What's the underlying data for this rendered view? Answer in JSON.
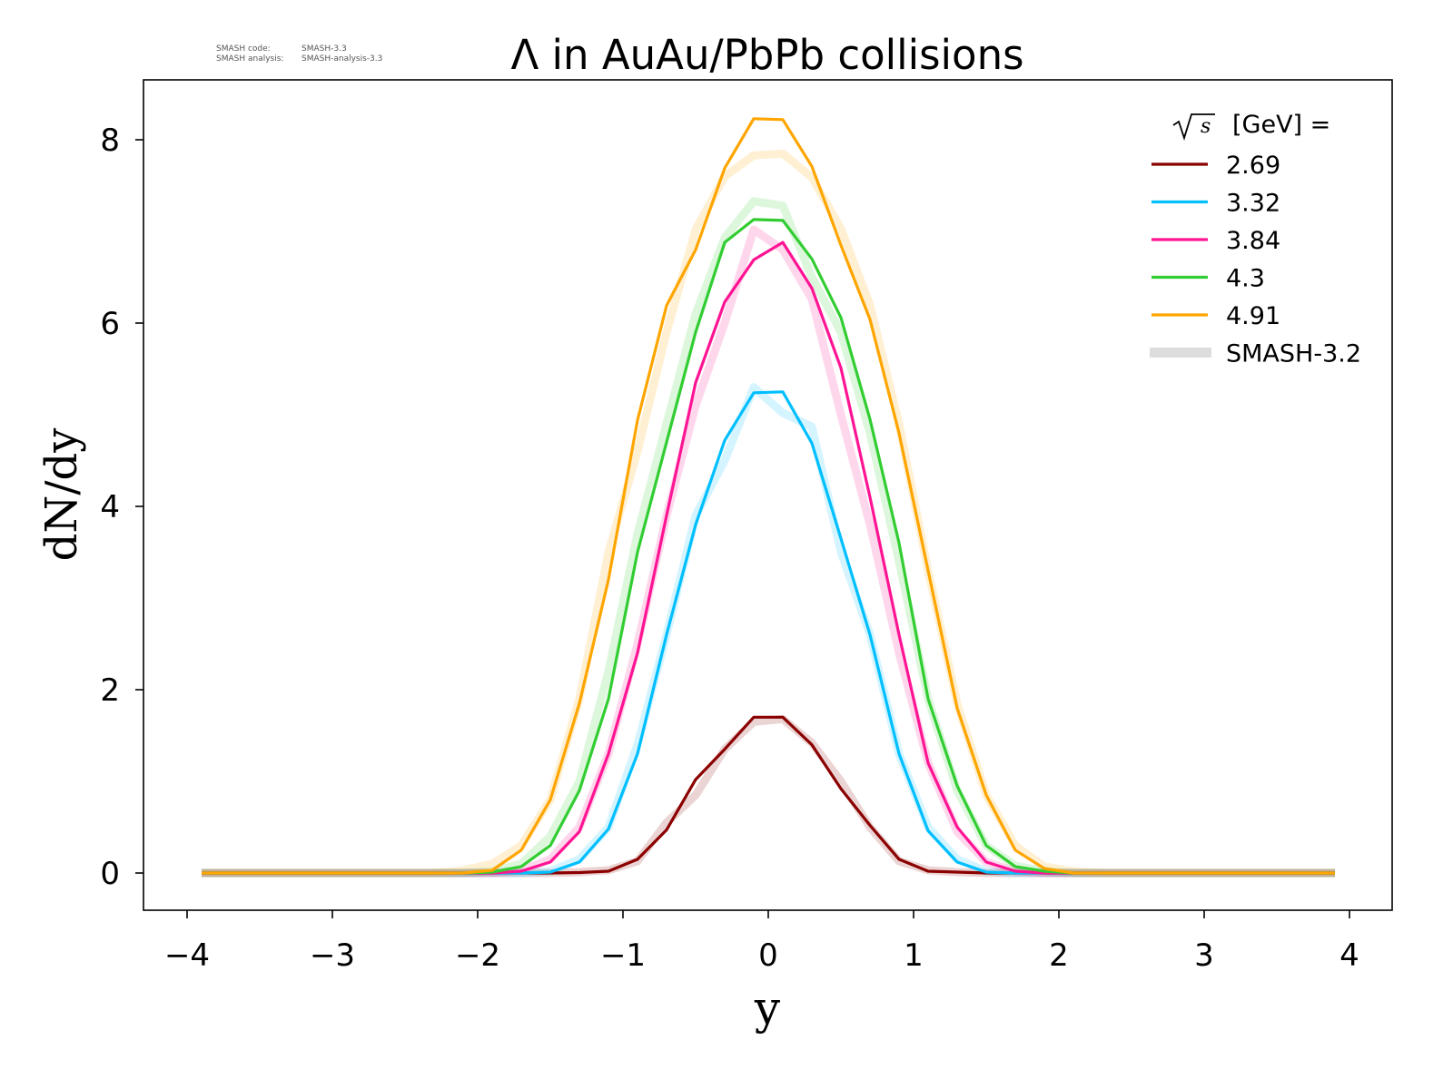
{
  "meta": {
    "code_label": "SMASH code:",
    "code_value": "SMASH-3.3",
    "analysis_label": "SMASH analysis:",
    "analysis_value": "SMASH-analysis-3.3"
  },
  "chart_data": {
    "type": "line",
    "title": "Λ in AuAu/PbPb collisions",
    "xlabel": "y",
    "ylabel": "dN/dy",
    "xlim": [
      -4.3,
      4.3
    ],
    "ylim": [
      -0.4,
      8.65
    ],
    "xticks": [
      -4,
      -3,
      -2,
      -1,
      0,
      1,
      2,
      3,
      4
    ],
    "xtick_labels": [
      "−4",
      "−3",
      "−2",
      "−1",
      "0",
      "1",
      "2",
      "3",
      "4"
    ],
    "yticks": [
      0,
      2,
      4,
      6,
      8
    ],
    "ytick_labels": [
      "0",
      "2",
      "4",
      "6",
      "8"
    ],
    "grid": false,
    "legend": {
      "placement": "top-right",
      "title_root": "s",
      "title_text": "[GeV] =",
      "reference_label": "SMASH-3.2",
      "reference_color": "#dddddd"
    },
    "x": [
      -3.9,
      -3.7,
      -3.5,
      -3.3,
      -3.1,
      -2.9,
      -2.7,
      -2.5,
      -2.3,
      -2.1,
      -1.9,
      -1.7,
      -1.5,
      -1.3,
      -1.1,
      -0.9,
      -0.7,
      -0.5,
      -0.3,
      -0.1,
      0.1,
      0.3,
      0.5,
      0.7,
      0.9,
      1.1,
      1.3,
      1.5,
      1.7,
      1.9,
      2.1,
      2.3,
      2.5,
      2.7,
      2.9,
      3.1,
      3.3,
      3.5,
      3.7,
      3.9
    ],
    "series": [
      {
        "name": "2.69",
        "color": "#8b0000",
        "values": [
          0,
          0,
          0,
          0,
          0,
          0,
          0,
          0,
          0,
          0,
          0,
          0,
          0,
          0.005,
          0.02,
          0.15,
          0.47,
          1.02,
          1.35,
          1.7,
          1.7,
          1.4,
          0.92,
          0.52,
          0.15,
          0.02,
          0.01,
          0,
          0,
          0,
          0,
          0,
          0,
          0,
          0,
          0,
          0,
          0,
          0,
          0
        ],
        "reference": [
          0,
          0,
          0,
          0,
          0,
          0,
          0,
          0,
          0,
          0,
          0,
          0,
          0,
          0.01,
          0.03,
          0.13,
          0.55,
          0.85,
          1.35,
          1.65,
          1.68,
          1.42,
          1.0,
          0.5,
          0.13,
          0.03,
          0.01,
          0,
          0,
          0,
          0,
          0,
          0,
          0,
          0,
          0,
          0,
          0,
          0,
          0
        ]
      },
      {
        "name": "3.32",
        "color": "#00bfff",
        "values": [
          0,
          0,
          0,
          0,
          0,
          0,
          0,
          0,
          0,
          0,
          0,
          0,
          0.01,
          0.12,
          0.48,
          1.3,
          2.6,
          3.8,
          4.72,
          5.24,
          5.25,
          4.69,
          3.65,
          2.6,
          1.3,
          0.46,
          0.12,
          0.01,
          0,
          0,
          0,
          0,
          0,
          0,
          0,
          0,
          0,
          0,
          0,
          0
        ],
        "reference": [
          0,
          0,
          0,
          0,
          0,
          0,
          0,
          0,
          0,
          0,
          0,
          0,
          0.02,
          0.15,
          0.5,
          1.4,
          2.6,
          3.9,
          4.5,
          5.3,
          5.02,
          4.87,
          3.5,
          2.6,
          1.3,
          0.5,
          0.15,
          0.02,
          0,
          0,
          0,
          0,
          0,
          0,
          0,
          0,
          0,
          0,
          0,
          0
        ]
      },
      {
        "name": "3.84",
        "color": "#ff1493",
        "values": [
          0,
          0,
          0,
          0,
          0,
          0,
          0,
          0,
          0,
          0,
          0,
          0.02,
          0.12,
          0.45,
          1.3,
          2.4,
          3.9,
          5.35,
          6.23,
          6.69,
          6.88,
          6.38,
          5.51,
          4.1,
          2.6,
          1.2,
          0.5,
          0.12,
          0.02,
          0,
          0,
          0,
          0,
          0,
          0,
          0,
          0,
          0,
          0,
          0
        ],
        "reference": [
          0,
          0,
          0,
          0,
          0,
          0,
          0,
          0,
          0,
          0,
          0,
          0.03,
          0.15,
          0.5,
          1.3,
          2.5,
          3.9,
          5.1,
          6.0,
          7.02,
          6.8,
          6.26,
          5.0,
          3.8,
          2.4,
          1.2,
          0.45,
          0.12,
          0.02,
          0,
          0,
          0,
          0,
          0,
          0,
          0,
          0,
          0,
          0,
          0
        ]
      },
      {
        "name": "4.3",
        "color": "#32cd32",
        "values": [
          0,
          0,
          0,
          0,
          0,
          0,
          0,
          0,
          0,
          0,
          0.01,
          0.07,
          0.3,
          0.9,
          1.9,
          3.5,
          4.7,
          5.9,
          6.88,
          7.13,
          7.12,
          6.7,
          6.06,
          4.95,
          3.6,
          1.9,
          0.95,
          0.3,
          0.07,
          0.02,
          0,
          0,
          0,
          0,
          0,
          0,
          0,
          0,
          0,
          0
        ],
        "reference": [
          0,
          0,
          0,
          0,
          0,
          0,
          0,
          0,
          0,
          0,
          0.02,
          0.1,
          0.4,
          1.0,
          2.2,
          3.7,
          4.9,
          6.1,
          6.93,
          7.33,
          7.28,
          6.5,
          5.9,
          4.8,
          3.4,
          1.9,
          0.9,
          0.3,
          0.08,
          0.02,
          0,
          0,
          0,
          0,
          0,
          0,
          0,
          0,
          0,
          0
        ]
      },
      {
        "name": "4.91",
        "color": "#ffa500",
        "values": [
          0,
          0,
          0,
          0,
          0,
          0,
          0,
          0,
          0,
          0,
          0.03,
          0.25,
          0.8,
          1.85,
          3.2,
          4.94,
          6.19,
          6.8,
          7.69,
          8.23,
          8.22,
          7.71,
          6.85,
          6.04,
          4.8,
          3.3,
          1.8,
          0.85,
          0.25,
          0.05,
          0,
          0,
          0,
          0,
          0,
          0,
          0,
          0,
          0,
          0
        ],
        "reference": [
          0,
          0,
          0,
          0,
          0,
          0,
          0,
          0,
          0,
          0.03,
          0.1,
          0.3,
          0.8,
          1.9,
          3.5,
          4.6,
          5.9,
          7.02,
          7.6,
          7.83,
          7.85,
          7.59,
          7.03,
          6.2,
          4.9,
          3.3,
          1.85,
          0.85,
          0.3,
          0.07,
          0.02,
          0,
          0,
          0,
          0,
          0,
          0,
          0,
          0,
          0
        ]
      }
    ]
  }
}
